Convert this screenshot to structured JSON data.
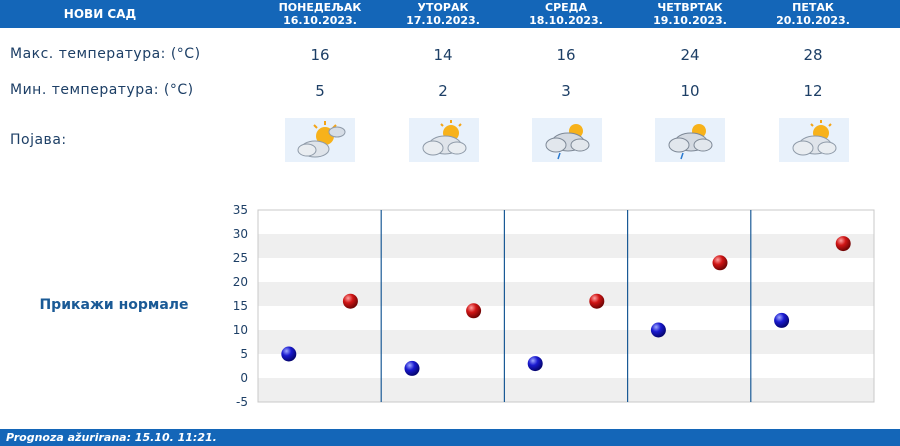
{
  "header": {
    "city": "НОВИ САД",
    "days": [
      {
        "name": "ПОНЕДЕЉАК",
        "date": "16.10.2023."
      },
      {
        "name": "УТОРАК",
        "date": "17.10.2023."
      },
      {
        "name": "СРЕДА",
        "date": "18.10.2023."
      },
      {
        "name": "ЧЕТВРТАК",
        "date": "19.10.2023."
      },
      {
        "name": "ПЕТАК",
        "date": "20.10.2023."
      }
    ]
  },
  "rows": {
    "max_label": "Макс. температура: (°C)",
    "min_label": "Мин. температура: (°C)",
    "phenomenon_label": "Појава:",
    "max": [
      "16",
      "14",
      "16",
      "24",
      "28"
    ],
    "min": [
      "5",
      "2",
      "3",
      "10",
      "12"
    ],
    "icons": [
      "sun-cloud-icon",
      "sun-cloud-icon",
      "sun-cloud-light-rain-icon",
      "sun-cloud-light-rain-icon",
      "sun-cloud-icon"
    ]
  },
  "normals_button": "Прикажи нормале",
  "chart_data": {
    "type": "scatter",
    "categories": [
      "ПОНЕДЕЉАК",
      "УТОРАК",
      "СРЕДА",
      "ЧЕТВРТАК",
      "ПЕТАК"
    ],
    "series": [
      {
        "values": [
          5,
          2,
          3,
          10,
          12
        ],
        "color": "#1010c0"
      },
      {
        "values": [
          16,
          14,
          16,
          24,
          28
        ],
        "color": "#c01010"
      }
    ],
    "y_ticks": [
      "35",
      "30",
      "25",
      "20",
      "15",
      "10",
      "5",
      "0",
      "-5"
    ],
    "ylim": [
      -5,
      35
    ],
    "grid": true
  },
  "footer": "Prognoza ažurirana:  15.10. 11:21."
}
